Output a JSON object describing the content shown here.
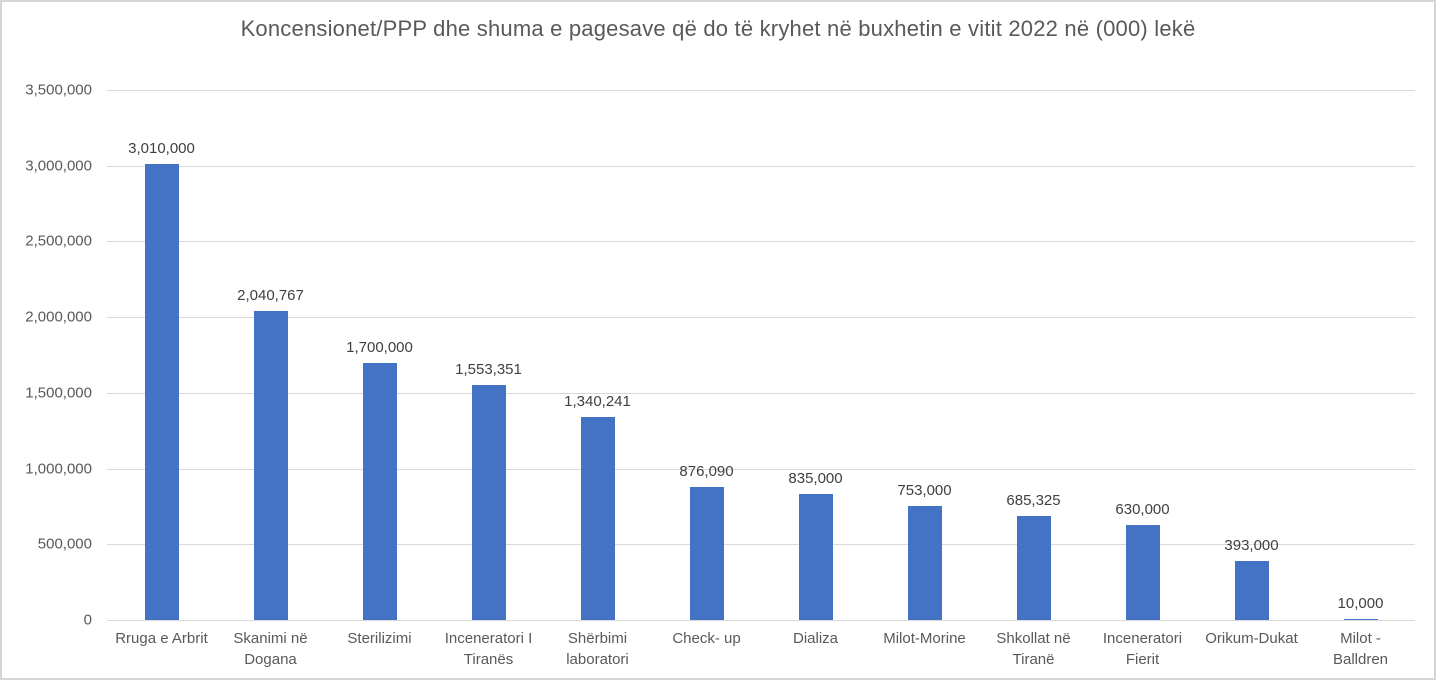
{
  "chart": {
    "background": "#FFFFFF",
    "border_color": "#D5D5D5",
    "bar_color": "#4472C4",
    "gridline_color": "#D9D9D9",
    "axis_text_color": "#595959",
    "data_label_color": "#404040"
  },
  "chart_data": {
    "type": "bar",
    "title": "Koncensionet/PPP dhe shuma e pagesave që do të kryhet në buxhetin e vitit 2022 në (000) lekë",
    "categories": [
      "Rruga e Arbrit",
      "Skanimi në Dogana",
      "Sterilizimi",
      "Inceneratori I Tiranës",
      "Shërbimi laboratori",
      "Check- up",
      "Dializa",
      "Milot-Morine",
      "Shkollat në Tiranë",
      "Inceneratori Fierit",
      "Orikum-Dukat",
      "Milot - Balldren"
    ],
    "values": [
      3010000,
      2040767,
      1700000,
      1553351,
      1340241,
      876090,
      835000,
      753000,
      685325,
      630000,
      393000,
      10000
    ],
    "data_labels": [
      "3,010,000",
      "2,040,767",
      "1,700,000",
      "1,553,351",
      "1,340,241",
      "876,090",
      "835,000",
      "753,000",
      "685,325",
      "630,000",
      "393,000",
      "10,000"
    ],
    "xlabel": "",
    "ylabel": "",
    "ylim": [
      0,
      3500000
    ],
    "ytick_step": 500000,
    "ytick_labels": [
      "0",
      "500,000",
      "1,000,000",
      "1,500,000",
      "2,000,000",
      "2,500,000",
      "3,000,000",
      "3,500,000"
    ],
    "grid": true,
    "legend": false
  }
}
